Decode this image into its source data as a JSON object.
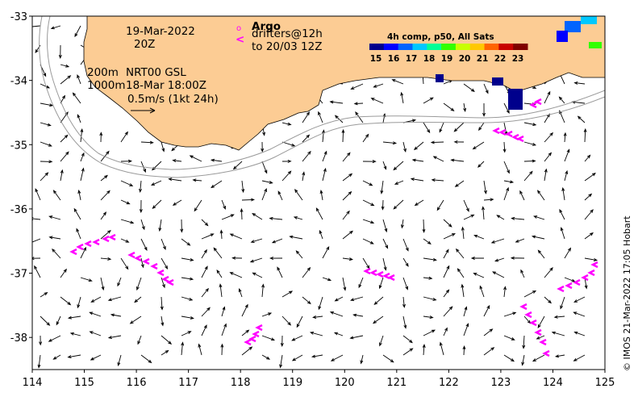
{
  "map": {
    "date_line": "19-Mar-2022",
    "time_line": "20Z",
    "contour_line_1": "200m",
    "contour_line_2": "1000m",
    "product_label": "NRT00 GSL",
    "product_time": "18-Mar 18:00Z",
    "scale_label": "0.5m/s (1kt 24h)",
    "argo_label": "Argo",
    "drifters_line_1": "drifters@12h",
    "drifters_line_2": "to 20/03 12Z",
    "argo_marker_symbol": "o",
    "drifter_marker_symbol": "<",
    "credit": "© IMOS 21-Mar-2022 17:05 Hobart",
    "land_color": "#fccc94",
    "drifter_color": "#ff00ff",
    "x_ticks": [
      "114",
      "115",
      "116",
      "117",
      "118",
      "119",
      "120",
      "121",
      "122",
      "123",
      "124",
      "125"
    ],
    "y_ticks": [
      "-33",
      "-34",
      "-35",
      "-36",
      "-37",
      "-38"
    ],
    "lon_range": [
      114,
      125
    ],
    "lat_range": [
      -38.5,
      -33
    ]
  },
  "colorbar": {
    "title": "4h comp, p50, All Sats",
    "labels": [
      "15",
      "16",
      "17",
      "18",
      "19",
      "20",
      "21",
      "22",
      "23"
    ],
    "colors": [
      "#00008c",
      "#0000ff",
      "#0064ff",
      "#00c8ff",
      "#00ff96",
      "#32ff00",
      "#c8ff00",
      "#ffc800",
      "#ff6400",
      "#c80000",
      "#800000"
    ]
  }
}
